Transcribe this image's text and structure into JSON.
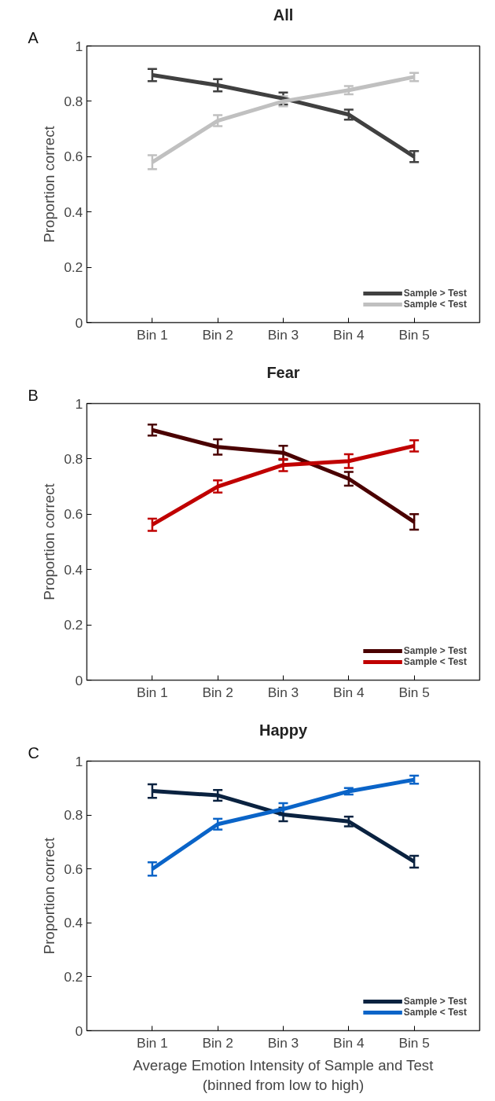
{
  "chart_data": [
    {
      "type": "line",
      "title": "All",
      "ylabel": "Proportion correct",
      "annotations": [
        "A"
      ],
      "categories": [
        "Bin 1",
        "Bin 2",
        "Bin 3",
        "Bin 4",
        "Bin 5"
      ],
      "ylim": [
        0,
        1
      ],
      "yticks": [
        0,
        0.2,
        0.4,
        0.6,
        0.8,
        1
      ],
      "grid": false,
      "legend": "bottom right",
      "series": [
        {
          "name": "Sample > Test",
          "color": "#404040",
          "values": [
            0.895,
            0.858,
            0.81,
            0.752,
            0.6
          ],
          "errors": [
            0.022,
            0.022,
            0.022,
            0.018,
            0.02
          ]
        },
        {
          "name": "Sample < Test",
          "color": "#c0c0c0",
          "values": [
            0.58,
            0.73,
            0.8,
            0.84,
            0.888
          ],
          "errors": [
            0.025,
            0.02,
            0.018,
            0.015,
            0.015
          ]
        }
      ]
    },
    {
      "type": "line",
      "title": "Fear",
      "ylabel": "Proportion correct",
      "annotations": [
        "B"
      ],
      "categories": [
        "Bin 1",
        "Bin 2",
        "Bin 3",
        "Bin 4",
        "Bin 5"
      ],
      "ylim": [
        0,
        1
      ],
      "yticks": [
        0,
        0.2,
        0.4,
        0.6,
        0.8,
        1
      ],
      "grid": false,
      "legend": "bottom right",
      "series": [
        {
          "name": "Sample > Test",
          "color": "#4a0000",
          "values": [
            0.904,
            0.843,
            0.822,
            0.728,
            0.572
          ],
          "errors": [
            0.02,
            0.028,
            0.025,
            0.025,
            0.028
          ]
        },
        {
          "name": "Sample < Test",
          "color": "#c00000",
          "values": [
            0.562,
            0.7,
            0.778,
            0.792,
            0.847
          ],
          "errors": [
            0.022,
            0.022,
            0.022,
            0.025,
            0.02
          ]
        }
      ]
    },
    {
      "type": "line",
      "title": "Happy",
      "ylabel": "Proportion correct",
      "xlabel": "Average Emotion Intensity of Sample and Test\n(binned from low to high)",
      "annotations": [
        "C"
      ],
      "categories": [
        "Bin 1",
        "Bin 2",
        "Bin 3",
        "Bin 4",
        "Bin 5"
      ],
      "ylim": [
        0,
        1
      ],
      "yticks": [
        0,
        0.2,
        0.4,
        0.6,
        0.8,
        1
      ],
      "grid": false,
      "legend": "bottom right",
      "series": [
        {
          "name": "Sample > Test",
          "color": "#0a2240",
          "values": [
            0.889,
            0.873,
            0.802,
            0.776,
            0.627
          ],
          "errors": [
            0.025,
            0.02,
            0.025,
            0.018,
            0.022
          ]
        },
        {
          "name": "Sample < Test",
          "color": "#0a64c8",
          "values": [
            0.6,
            0.766,
            0.822,
            0.888,
            0.931
          ],
          "errors": [
            0.025,
            0.02,
            0.022,
            0.012,
            0.015
          ]
        }
      ]
    }
  ]
}
